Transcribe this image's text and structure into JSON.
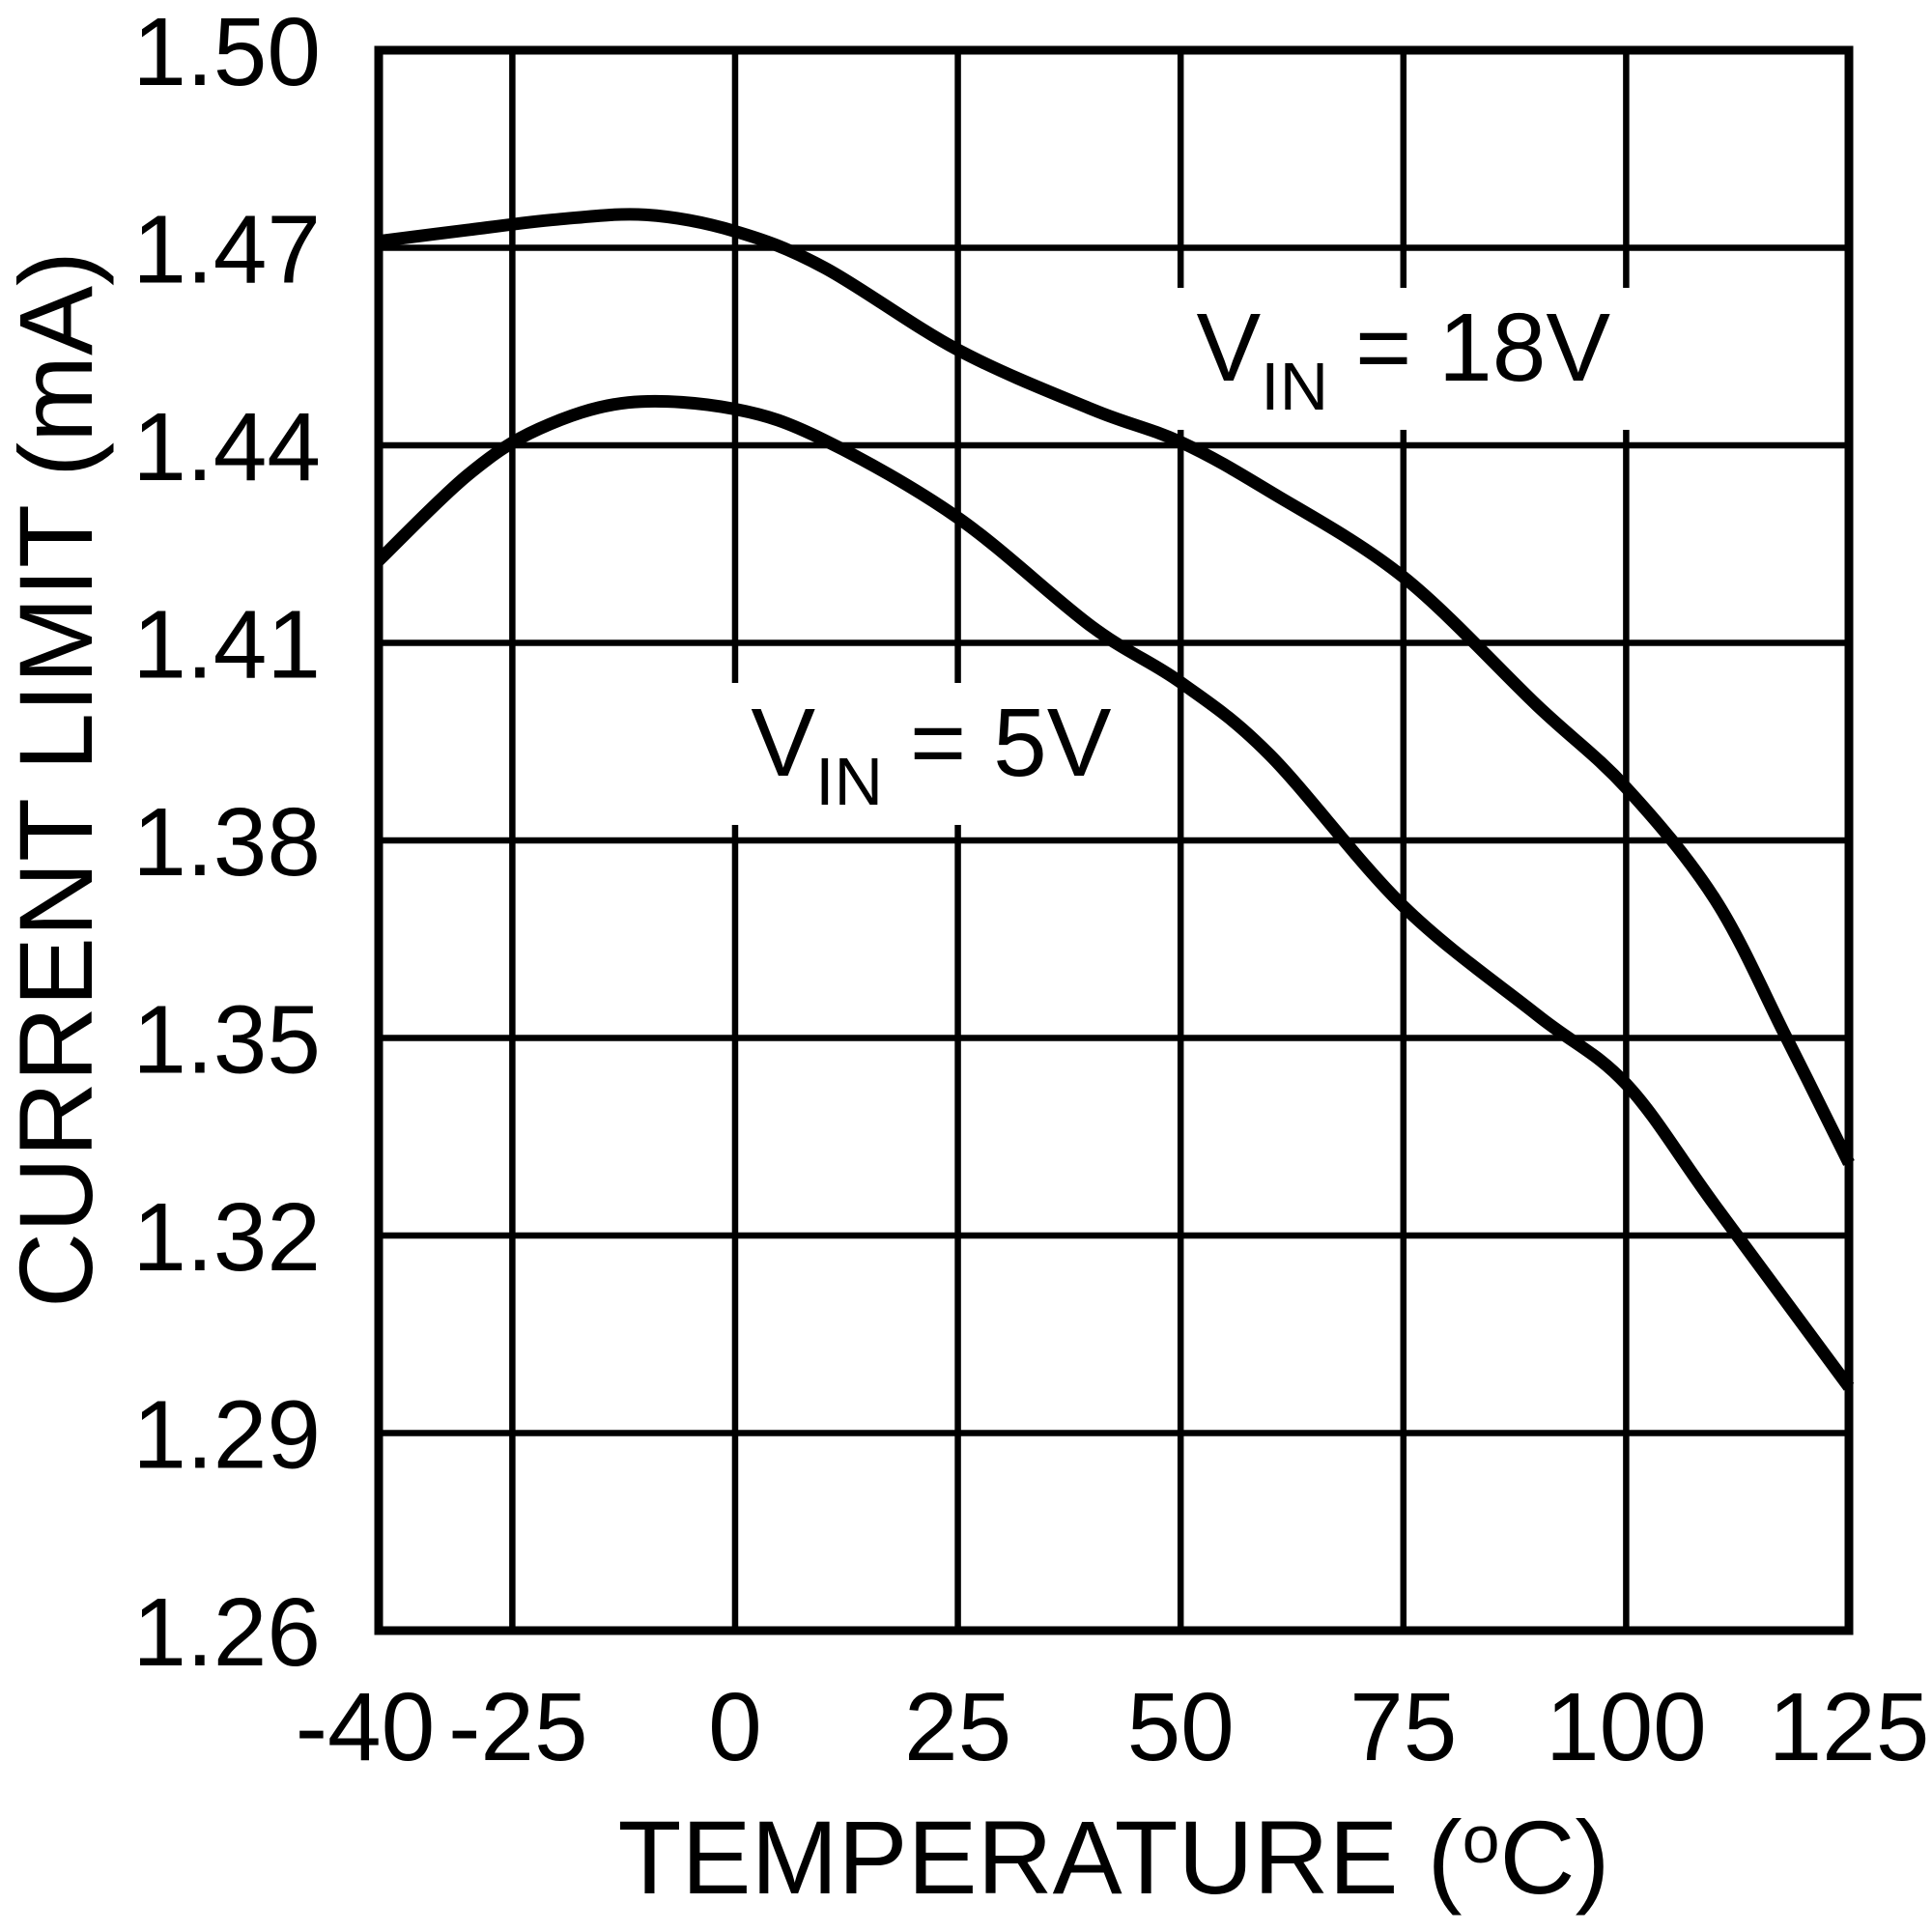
{
  "page": {
    "background": "#ffffff",
    "ink_color": "#000000"
  },
  "chart_data": {
    "type": "line",
    "title": "",
    "xlabel_parts": {
      "prefix": "TEMPERATURE (",
      "sup": "o",
      "rest": "C)"
    },
    "xlabel_plain": "TEMPERATURE (oC)",
    "ylabel": "CURRENT LIMIT (mA)",
    "xlim": [
      -40,
      125
    ],
    "ylim": [
      1.26,
      1.5
    ],
    "grid": true,
    "legend_position": "inline-annotations",
    "x_ticks": [
      {
        "value": -40,
        "label": "-40"
      },
      {
        "value": -25,
        "label": "-25"
      },
      {
        "value": 0,
        "label": "0"
      },
      {
        "value": 25,
        "label": "25"
      },
      {
        "value": 50,
        "label": "50"
      },
      {
        "value": 75,
        "label": "75"
      },
      {
        "value": 100,
        "label": "100"
      },
      {
        "value": 125,
        "label": "125"
      }
    ],
    "y_ticks": [
      {
        "value": 1.26,
        "label": "1.26"
      },
      {
        "value": 1.29,
        "label": "1.29"
      },
      {
        "value": 1.32,
        "label": "1.32"
      },
      {
        "value": 1.35,
        "label": "1.35"
      },
      {
        "value": 1.38,
        "label": "1.38"
      },
      {
        "value": 1.41,
        "label": "1.41"
      },
      {
        "value": 1.44,
        "label": "1.44"
      },
      {
        "value": 1.47,
        "label": "1.47"
      },
      {
        "value": 1.5,
        "label": "1.50"
      }
    ],
    "series": [
      {
        "name": "VIN = 18V",
        "color": "#000000",
        "x": [
          -40,
          -30,
          -20,
          -10,
          0,
          10,
          25,
          40,
          50,
          60,
          75,
          90,
          100,
          110,
          118,
          125
        ],
        "values": [
          1.471,
          1.4727,
          1.4743,
          1.475,
          1.4725,
          1.467,
          1.4545,
          1.4455,
          1.4405,
          1.433,
          1.42,
          1.4005,
          1.388,
          1.371,
          1.35,
          1.331
        ]
      },
      {
        "name": "VIN = 5V",
        "color": "#000000",
        "x": [
          -40,
          -30,
          -22,
          -12,
          0,
          10,
          25,
          40,
          50,
          60,
          75,
          90,
          100,
          110,
          125
        ],
        "values": [
          1.4225,
          1.4355,
          1.4425,
          1.4465,
          1.4455,
          1.4408,
          1.429,
          1.4125,
          1.404,
          1.393,
          1.37,
          1.3535,
          1.343,
          1.3245,
          1.297
        ]
      }
    ],
    "annotations": [
      {
        "name": "vin-18v-label",
        "x": 75,
        "y": 1.4535,
        "prefix": "V",
        "sub": "IN",
        "rest": " = 18V"
      },
      {
        "name": "vin-5v-label",
        "x": 22,
        "y": 1.3935,
        "prefix": "V",
        "sub": "IN",
        "rest": " = 5V"
      }
    ]
  }
}
